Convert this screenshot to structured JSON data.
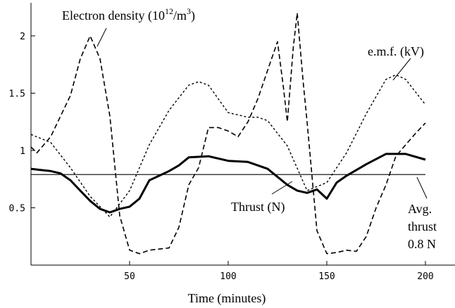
{
  "chart_data": {
    "type": "line",
    "title": "",
    "xlabel": "Time (minutes)",
    "ylabel": "",
    "xlim": [
      0,
      200
    ],
    "ylim": [
      0,
      2.2
    ],
    "x_ticks": [
      50,
      100,
      150,
      200
    ],
    "x_tick_labels": [
      "50",
      "100",
      "150",
      "200"
    ],
    "y_ticks": [
      0.5,
      1,
      1.5,
      2
    ],
    "y_tick_labels": [
      "0.5",
      "1",
      "1.5",
      "2"
    ],
    "grid": false,
    "legend": "none",
    "series": [
      {
        "name": "Electron density (10¹²/m³)",
        "style": "dashed",
        "color": "#000000",
        "x": [
          0,
          3,
          10,
          20,
          25,
          30,
          35,
          40,
          45,
          50,
          55,
          60,
          65,
          70,
          75,
          80,
          85,
          90,
          95,
          100,
          105,
          110,
          115,
          120,
          125,
          128,
          130,
          133,
          135,
          138,
          140,
          145,
          150,
          155,
          160,
          165,
          170,
          175,
          180,
          185,
          190,
          195,
          200
        ],
        "y": [
          1.03,
          0.98,
          1.12,
          1.48,
          1.8,
          2.0,
          1.8,
          1.3,
          0.43,
          0.13,
          0.1,
          0.13,
          0.14,
          0.15,
          0.33,
          0.7,
          0.85,
          1.2,
          1.2,
          1.17,
          1.12,
          1.25,
          1.45,
          1.7,
          1.95,
          1.55,
          1.25,
          1.9,
          2.2,
          1.6,
          1.25,
          0.3,
          0.1,
          0.11,
          0.13,
          0.12,
          0.25,
          0.5,
          0.7,
          0.95,
          1.05,
          1.15,
          1.24
        ]
      },
      {
        "name": "e.m.f. (kV)",
        "style": "dotted",
        "color": "#000000",
        "x": [
          0,
          10,
          20,
          30,
          40,
          50,
          60,
          70,
          80,
          85,
          90,
          100,
          110,
          115,
          120,
          130,
          140,
          150,
          160,
          170,
          180,
          185,
          190,
          200
        ],
        "y": [
          1.14,
          1.07,
          0.85,
          0.6,
          0.42,
          0.65,
          1.05,
          1.35,
          1.57,
          1.6,
          1.57,
          1.33,
          1.29,
          1.29,
          1.26,
          1.04,
          0.65,
          0.72,
          0.98,
          1.32,
          1.62,
          1.66,
          1.62,
          1.4
        ]
      },
      {
        "name": "Thrust (N)",
        "style": "solid-thick",
        "color": "#000000",
        "x": [
          0,
          5,
          10,
          15,
          20,
          25,
          30,
          35,
          40,
          45,
          50,
          55,
          60,
          65,
          70,
          75,
          80,
          90,
          100,
          110,
          120,
          130,
          135,
          140,
          145,
          150,
          155,
          160,
          170,
          180,
          190,
          200
        ],
        "y": [
          0.84,
          0.83,
          0.82,
          0.8,
          0.74,
          0.65,
          0.56,
          0.49,
          0.46,
          0.49,
          0.51,
          0.58,
          0.74,
          0.78,
          0.82,
          0.87,
          0.94,
          0.95,
          0.91,
          0.9,
          0.84,
          0.7,
          0.65,
          0.63,
          0.66,
          0.58,
          0.72,
          0.78,
          0.88,
          0.97,
          0.97,
          0.92
        ]
      },
      {
        "name": "Avg. thrust 0.8 N",
        "style": "solid-thin",
        "color": "#000000",
        "x": [
          0,
          200
        ],
        "y": [
          0.79,
          0.79
        ]
      }
    ],
    "annotations": {
      "electron_density": "Electron density (10",
      "electron_density_sup": "12",
      "electron_density_mid": "/m",
      "electron_density_sup2": "3",
      "electron_density_end": ")",
      "emf": "e.m.f. (kV)",
      "thrust": "Thrust (N)",
      "avg_line1": "Avg.",
      "avg_line2": "thrust",
      "avg_line3": "0.8 N"
    }
  }
}
